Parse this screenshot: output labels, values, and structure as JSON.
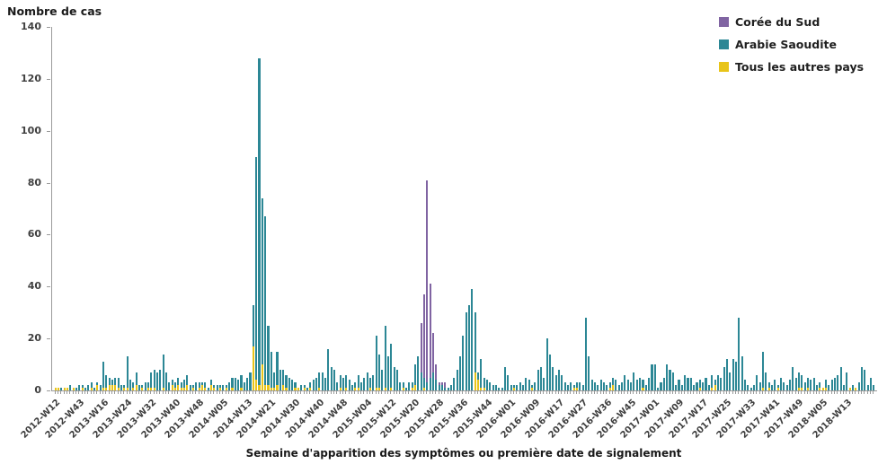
{
  "chart_data": {
    "type": "bar",
    "stacked": true,
    "ylabel": "Nombre de cas",
    "xlabel": "Semaine d'apparition des symptômes ou première date de signalement",
    "ylim": [
      0,
      140
    ],
    "y_ticks": [
      0,
      20,
      40,
      60,
      80,
      100,
      120,
      140
    ],
    "grid": false,
    "legend_position": "top-right",
    "legend": [
      {
        "label": "Corée du Sud",
        "color": "#8064a2"
      },
      {
        "label": "Arabie Saoudite",
        "color": "#2c8795"
      },
      {
        "label": "Tous les autres pays",
        "color": "#e8c419"
      }
    ],
    "series_keys_bottom_to_top": [
      "tous_les_autres_pays",
      "arabie_saoudite",
      "coree_du_sud"
    ],
    "x_tick_label_every": 8,
    "x_tick_labels": [
      "2012-W12",
      "2012-W43",
      "2013-W16",
      "2013-W24",
      "2013-W32",
      "2013-W40",
      "2013-W48",
      "2014-W05",
      "2014-W13",
      "2014-W21",
      "2014-W30",
      "2014-W40",
      "2014-W48",
      "2015-W04",
      "2015-W12",
      "2015-W20",
      "2015-W28",
      "2015-W36",
      "2015-W44",
      "2016-W01",
      "2016-W09",
      "2016-W17",
      "2016-W27",
      "2016-W36",
      "2016-W45",
      "2017-W01",
      "2017-W09",
      "2017-W17",
      "2017-W25",
      "2017-W33",
      "2017-W41",
      "2017-W49",
      "2018-W05",
      "2018-W13"
    ],
    "bars": [
      [
        1,
        0,
        0
      ],
      [
        1,
        0,
        0
      ],
      [
        0,
        1,
        0
      ],
      [
        1,
        0,
        0
      ],
      [
        1,
        0,
        0
      ],
      [
        0,
        2,
        0
      ],
      [
        1,
        0,
        0
      ],
      [
        0,
        1,
        0
      ],
      [
        0,
        2,
        0
      ],
      [
        1,
        1,
        0
      ],
      [
        0,
        1,
        0
      ],
      [
        0,
        2,
        0
      ],
      [
        1,
        2,
        0
      ],
      [
        0,
        1,
        0
      ],
      [
        2,
        1,
        0
      ],
      [
        0,
        2,
        0
      ],
      [
        1,
        10,
        0
      ],
      [
        1,
        5,
        0
      ],
      [
        2,
        3,
        0
      ],
      [
        2,
        2,
        0
      ],
      [
        2,
        3,
        0
      ],
      [
        1,
        4,
        0
      ],
      [
        0,
        2,
        0
      ],
      [
        1,
        1,
        0
      ],
      [
        1,
        12,
        0
      ],
      [
        0,
        4,
        0
      ],
      [
        1,
        2,
        0
      ],
      [
        2,
        5,
        0
      ],
      [
        0,
        2,
        0
      ],
      [
        1,
        1,
        0
      ],
      [
        0,
        3,
        0
      ],
      [
        1,
        2,
        0
      ],
      [
        1,
        6,
        0
      ],
      [
        1,
        7,
        0
      ],
      [
        0,
        7,
        0
      ],
      [
        0,
        8,
        0
      ],
      [
        1,
        13,
        0
      ],
      [
        0,
        7,
        0
      ],
      [
        0,
        3,
        0
      ],
      [
        2,
        2,
        0
      ],
      [
        1,
        2,
        0
      ],
      [
        2,
        3,
        0
      ],
      [
        1,
        2,
        0
      ],
      [
        1,
        3,
        0
      ],
      [
        2,
        4,
        0
      ],
      [
        0,
        2,
        0
      ],
      [
        1,
        1,
        0
      ],
      [
        0,
        3,
        0
      ],
      [
        1,
        2,
        0
      ],
      [
        2,
        1,
        0
      ],
      [
        1,
        2,
        0
      ],
      [
        0,
        1,
        0
      ],
      [
        2,
        2,
        0
      ],
      [
        1,
        1,
        0
      ],
      [
        0,
        2,
        0
      ],
      [
        1,
        1,
        0
      ],
      [
        0,
        2,
        0
      ],
      [
        1,
        1,
        0
      ],
      [
        0,
        3,
        0
      ],
      [
        1,
        4,
        0
      ],
      [
        0,
        5,
        0
      ],
      [
        0,
        4,
        0
      ],
      [
        1,
        5,
        0
      ],
      [
        0,
        3,
        0
      ],
      [
        0,
        5,
        0
      ],
      [
        0,
        7,
        0
      ],
      [
        17,
        16,
        0
      ],
      [
        4,
        86,
        0
      ],
      [
        2,
        126,
        0
      ],
      [
        10,
        64,
        0
      ],
      [
        2,
        65,
        0
      ],
      [
        2,
        23,
        0
      ],
      [
        1,
        14,
        0
      ],
      [
        1,
        6,
        0
      ],
      [
        2,
        13,
        0
      ],
      [
        0,
        8,
        0
      ],
      [
        2,
        6,
        0
      ],
      [
        1,
        5,
        0
      ],
      [
        0,
        5,
        0
      ],
      [
        0,
        4,
        0
      ],
      [
        1,
        2,
        0
      ],
      [
        1,
        0,
        0
      ],
      [
        0,
        2,
        0
      ],
      [
        1,
        1,
        0
      ],
      [
        0,
        1,
        0
      ],
      [
        1,
        2,
        0
      ],
      [
        0,
        4,
        0
      ],
      [
        0,
        5,
        0
      ],
      [
        1,
        6,
        0
      ],
      [
        0,
        7,
        0
      ],
      [
        0,
        5,
        0
      ],
      [
        0,
        16,
        0
      ],
      [
        0,
        9,
        0
      ],
      [
        0,
        8,
        0
      ],
      [
        0,
        3,
        0
      ],
      [
        1,
        5,
        0
      ],
      [
        0,
        5,
        0
      ],
      [
        1,
        5,
        0
      ],
      [
        0,
        4,
        0
      ],
      [
        0,
        2,
        0
      ],
      [
        1,
        2,
        0
      ],
      [
        1,
        5,
        0
      ],
      [
        0,
        3,
        0
      ],
      [
        0,
        5,
        0
      ],
      [
        0,
        7,
        0
      ],
      [
        1,
        4,
        0
      ],
      [
        0,
        6,
        0
      ],
      [
        1,
        20,
        0
      ],
      [
        1,
        13,
        0
      ],
      [
        0,
        8,
        0
      ],
      [
        1,
        24,
        0
      ],
      [
        0,
        13,
        0
      ],
      [
        1,
        17,
        0
      ],
      [
        0,
        9,
        0
      ],
      [
        0,
        8,
        0
      ],
      [
        0,
        3,
        0
      ],
      [
        1,
        2,
        0
      ],
      [
        0,
        1,
        0
      ],
      [
        0,
        3,
        0
      ],
      [
        1,
        2,
        0
      ],
      [
        2,
        8,
        0
      ],
      [
        0,
        13,
        0
      ],
      [
        0,
        7,
        19
      ],
      [
        1,
        4,
        32
      ],
      [
        0,
        3,
        78
      ],
      [
        0,
        5,
        36
      ],
      [
        0,
        7,
        15
      ],
      [
        0,
        4,
        6
      ],
      [
        0,
        2,
        1
      ],
      [
        0,
        2,
        1
      ],
      [
        0,
        1,
        2
      ],
      [
        0,
        1,
        0
      ],
      [
        0,
        2,
        0
      ],
      [
        0,
        5,
        0
      ],
      [
        0,
        8,
        0
      ],
      [
        0,
        13,
        0
      ],
      [
        0,
        21,
        0
      ],
      [
        0,
        30,
        0
      ],
      [
        0,
        33,
        0
      ],
      [
        0,
        39,
        0
      ],
      [
        7,
        23,
        0
      ],
      [
        4,
        3,
        0
      ],
      [
        1,
        11,
        0
      ],
      [
        1,
        4,
        0
      ],
      [
        0,
        4,
        0
      ],
      [
        0,
        3,
        0
      ],
      [
        0,
        2,
        0
      ],
      [
        0,
        2,
        0
      ],
      [
        0,
        1,
        0
      ],
      [
        0,
        1,
        0
      ],
      [
        0,
        9,
        0
      ],
      [
        0,
        6,
        0
      ],
      [
        0,
        2,
        0
      ],
      [
        1,
        1,
        0
      ],
      [
        0,
        2,
        0
      ],
      [
        0,
        3,
        0
      ],
      [
        0,
        2,
        0
      ],
      [
        0,
        5,
        0
      ],
      [
        0,
        4,
        0
      ],
      [
        1,
        1,
        0
      ],
      [
        0,
        3,
        0
      ],
      [
        0,
        8,
        0
      ],
      [
        0,
        9,
        0
      ],
      [
        0,
        5,
        0
      ],
      [
        0,
        20,
        0
      ],
      [
        0,
        14,
        0
      ],
      [
        0,
        9,
        0
      ],
      [
        0,
        6,
        0
      ],
      [
        0,
        8,
        0
      ],
      [
        0,
        6,
        0
      ],
      [
        0,
        3,
        0
      ],
      [
        0,
        2,
        0
      ],
      [
        0,
        3,
        0
      ],
      [
        1,
        1,
        0
      ],
      [
        1,
        2,
        0
      ],
      [
        0,
        3,
        0
      ],
      [
        0,
        2,
        0
      ],
      [
        0,
        28,
        0
      ],
      [
        0,
        13,
        0
      ],
      [
        0,
        4,
        0
      ],
      [
        0,
        3,
        0
      ],
      [
        0,
        2,
        0
      ],
      [
        0,
        4,
        0
      ],
      [
        0,
        3,
        0
      ],
      [
        0,
        2,
        0
      ],
      [
        1,
        2,
        0
      ],
      [
        2,
        3,
        0
      ],
      [
        0,
        4,
        0
      ],
      [
        0,
        2,
        0
      ],
      [
        0,
        3,
        0
      ],
      [
        0,
        6,
        0
      ],
      [
        0,
        4,
        0
      ],
      [
        0,
        3,
        0
      ],
      [
        0,
        7,
        0
      ],
      [
        0,
        4,
        0
      ],
      [
        0,
        5,
        0
      ],
      [
        1,
        3,
        0
      ],
      [
        0,
        2,
        0
      ],
      [
        0,
        5,
        0
      ],
      [
        0,
        10,
        0
      ],
      [
        0,
        10,
        0
      ],
      [
        0,
        1,
        0
      ],
      [
        0,
        3,
        0
      ],
      [
        0,
        5,
        0
      ],
      [
        0,
        10,
        0
      ],
      [
        0,
        8,
        0
      ],
      [
        0,
        7,
        0
      ],
      [
        0,
        2,
        0
      ],
      [
        0,
        4,
        0
      ],
      [
        0,
        2,
        0
      ],
      [
        0,
        6,
        0
      ],
      [
        0,
        5,
        0
      ],
      [
        0,
        5,
        0
      ],
      [
        0,
        2,
        0
      ],
      [
        0,
        3,
        0
      ],
      [
        1,
        3,
        0
      ],
      [
        0,
        3,
        0
      ],
      [
        0,
        5,
        0
      ],
      [
        0,
        2,
        0
      ],
      [
        1,
        5,
        0
      ],
      [
        2,
        2,
        0
      ],
      [
        0,
        6,
        0
      ],
      [
        0,
        5,
        0
      ],
      [
        0,
        9,
        0
      ],
      [
        0,
        12,
        0
      ],
      [
        0,
        7,
        0
      ],
      [
        0,
        12,
        0
      ],
      [
        0,
        11,
        0
      ],
      [
        0,
        28,
        0
      ],
      [
        0,
        13,
        0
      ],
      [
        0,
        4,
        0
      ],
      [
        0,
        2,
        0
      ],
      [
        0,
        1,
        0
      ],
      [
        0,
        2,
        0
      ],
      [
        0,
        6,
        0
      ],
      [
        0,
        3,
        0
      ],
      [
        1,
        14,
        0
      ],
      [
        0,
        7,
        0
      ],
      [
        1,
        2,
        0
      ],
      [
        0,
        2,
        0
      ],
      [
        0,
        4,
        0
      ],
      [
        1,
        1,
        0
      ],
      [
        0,
        5,
        0
      ],
      [
        0,
        3,
        0
      ],
      [
        0,
        2,
        0
      ],
      [
        0,
        4,
        0
      ],
      [
        0,
        9,
        0
      ],
      [
        0,
        5,
        0
      ],
      [
        1,
        6,
        0
      ],
      [
        1,
        5,
        0
      ],
      [
        0,
        3,
        0
      ],
      [
        1,
        4,
        0
      ],
      [
        0,
        4,
        0
      ],
      [
        0,
        5,
        0
      ],
      [
        0,
        2,
        0
      ],
      [
        1,
        2,
        0
      ],
      [
        1,
        0,
        0
      ],
      [
        1,
        3,
        0
      ],
      [
        0,
        2,
        0
      ],
      [
        0,
        4,
        0
      ],
      [
        0,
        5,
        0
      ],
      [
        0,
        6,
        0
      ],
      [
        0,
        9,
        0
      ],
      [
        0,
        2,
        0
      ],
      [
        0,
        7,
        0
      ],
      [
        1,
        0,
        0
      ],
      [
        0,
        2,
        0
      ],
      [
        1,
        0,
        0
      ],
      [
        0,
        3,
        0
      ],
      [
        0,
        9,
        0
      ],
      [
        0,
        8,
        0
      ],
      [
        0,
        2,
        0
      ],
      [
        0,
        5,
        0
      ],
      [
        0,
        2,
        0
      ]
    ]
  },
  "colors": {
    "axis": "#9a9a9a",
    "tick_label": "#3f3f3f",
    "title_text": "#1a1a1a",
    "background": "#ffffff"
  }
}
